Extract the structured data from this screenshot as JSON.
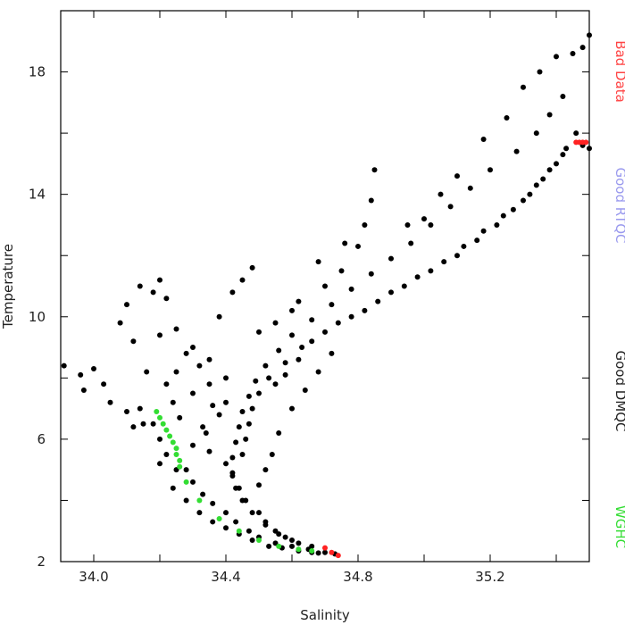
{
  "chart_data": {
    "type": "scatter",
    "title": "",
    "xlabel": "Salinity",
    "ylabel": "Temperature",
    "xlim": [
      33.9,
      35.5
    ],
    "ylim": [
      2,
      20
    ],
    "xticks": [
      34.0,
      34.2,
      34.4,
      34.6,
      34.8,
      35.0,
      35.2,
      35.4
    ],
    "xtick_labels": [
      "34.0",
      "",
      "34.4",
      "",
      "34.8",
      "",
      "35.2",
      ""
    ],
    "yticks": [
      2,
      4,
      6,
      8,
      10,
      12,
      14,
      16,
      18,
      20
    ],
    "ytick_labels": [
      "2",
      "",
      "6",
      "",
      "10",
      "",
      "14",
      "",
      "18",
      ""
    ],
    "grid": false,
    "legend_placement": "right-vertical",
    "legend": [
      {
        "name": "Bad Data",
        "color": "#ff4444"
      },
      {
        "name": "Good RTQC",
        "color": "#9999ee"
      },
      {
        "name": "Good DMQC",
        "color": "#222222"
      },
      {
        "name": "WGHC",
        "color": "#33dd33"
      }
    ],
    "series": [
      {
        "name": "Good DMQC",
        "color": "#000000",
        "points": [
          [
            33.91,
            8.4
          ],
          [
            33.96,
            8.1
          ],
          [
            33.97,
            7.6
          ],
          [
            34.0,
            8.3
          ],
          [
            34.03,
            7.8
          ],
          [
            34.05,
            7.2
          ],
          [
            34.1,
            6.9
          ],
          [
            34.15,
            6.5
          ],
          [
            34.14,
            11.0
          ],
          [
            34.18,
            10.8
          ],
          [
            34.2,
            11.2
          ],
          [
            34.22,
            10.6
          ],
          [
            34.25,
            9.6
          ],
          [
            34.3,
            9.0
          ],
          [
            34.35,
            8.6
          ],
          [
            34.4,
            8.0
          ],
          [
            34.08,
            9.8
          ],
          [
            34.12,
            9.2
          ],
          [
            34.1,
            10.4
          ],
          [
            34.2,
            9.4
          ],
          [
            34.25,
            8.2
          ],
          [
            34.3,
            7.5
          ],
          [
            34.35,
            7.8
          ],
          [
            34.4,
            7.2
          ],
          [
            34.18,
            6.5
          ],
          [
            34.2,
            6.0
          ],
          [
            34.22,
            5.5
          ],
          [
            34.25,
            5.0
          ],
          [
            34.3,
            4.6
          ],
          [
            34.33,
            4.2
          ],
          [
            34.36,
            3.9
          ],
          [
            34.4,
            3.6
          ],
          [
            34.43,
            3.3
          ],
          [
            34.47,
            3.0
          ],
          [
            34.5,
            2.8
          ],
          [
            34.55,
            2.6
          ],
          [
            34.6,
            2.5
          ],
          [
            34.65,
            2.4
          ],
          [
            34.7,
            2.3
          ],
          [
            34.73,
            2.25
          ],
          [
            34.45,
            5.5
          ],
          [
            34.46,
            6.0
          ],
          [
            34.47,
            6.5
          ],
          [
            34.48,
            7.0
          ],
          [
            34.5,
            7.5
          ],
          [
            34.53,
            8.0
          ],
          [
            34.58,
            8.5
          ],
          [
            34.63,
            9.0
          ],
          [
            34.7,
            9.5
          ],
          [
            34.78,
            10.0
          ],
          [
            34.86,
            10.5
          ],
          [
            34.94,
            11.0
          ],
          [
            35.02,
            11.5
          ],
          [
            35.1,
            12.0
          ],
          [
            35.16,
            12.5
          ],
          [
            35.22,
            13.0
          ],
          [
            35.27,
            13.5
          ],
          [
            35.32,
            14.0
          ],
          [
            35.36,
            14.5
          ],
          [
            35.4,
            15.0
          ],
          [
            35.43,
            15.5
          ],
          [
            35.46,
            16.0
          ],
          [
            35.5,
            15.5
          ],
          [
            35.48,
            15.6
          ],
          [
            34.28,
            5.0
          ],
          [
            34.3,
            5.8
          ],
          [
            34.34,
            6.2
          ],
          [
            34.38,
            6.8
          ],
          [
            34.4,
            5.2
          ],
          [
            34.42,
            4.8
          ],
          [
            34.44,
            4.4
          ],
          [
            34.46,
            4.0
          ],
          [
            34.5,
            3.6
          ],
          [
            34.52,
            3.3
          ],
          [
            34.55,
            3.0
          ],
          [
            34.58,
            2.8
          ],
          [
            34.62,
            2.6
          ],
          [
            34.66,
            2.5
          ],
          [
            34.5,
            4.5
          ],
          [
            34.52,
            5.0
          ],
          [
            34.54,
            5.5
          ],
          [
            34.56,
            6.2
          ],
          [
            34.6,
            7.0
          ],
          [
            34.64,
            7.6
          ],
          [
            34.68,
            8.2
          ],
          [
            34.72,
            8.8
          ],
          [
            34.62,
            10.5
          ],
          [
            34.7,
            11.0
          ],
          [
            34.75,
            11.5
          ],
          [
            34.8,
            12.3
          ],
          [
            34.82,
            13.0
          ],
          [
            34.84,
            13.8
          ],
          [
            34.85,
            14.8
          ],
          [
            34.76,
            12.4
          ],
          [
            34.68,
            11.8
          ],
          [
            34.6,
            10.2
          ],
          [
            34.55,
            9.8
          ],
          [
            34.5,
            9.5
          ],
          [
            34.45,
            11.2
          ],
          [
            34.48,
            11.6
          ],
          [
            34.42,
            10.8
          ],
          [
            34.38,
            10.0
          ],
          [
            34.95,
            13.0
          ],
          [
            35.0,
            13.2
          ],
          [
            35.05,
            14.0
          ],
          [
            35.1,
            14.6
          ],
          [
            35.18,
            15.8
          ],
          [
            35.25,
            16.5
          ],
          [
            35.3,
            17.5
          ],
          [
            35.35,
            18.0
          ],
          [
            35.4,
            18.5
          ],
          [
            35.45,
            18.6
          ],
          [
            35.48,
            18.8
          ],
          [
            35.5,
            19.2
          ],
          [
            35.42,
            17.2
          ],
          [
            35.38,
            16.6
          ],
          [
            35.34,
            16.0
          ],
          [
            35.28,
            15.4
          ],
          [
            35.2,
            14.8
          ],
          [
            35.14,
            14.2
          ],
          [
            35.08,
            13.6
          ],
          [
            35.02,
            13.0
          ],
          [
            34.96,
            12.4
          ],
          [
            34.9,
            11.9
          ],
          [
            34.84,
            11.4
          ],
          [
            34.78,
            10.9
          ],
          [
            34.72,
            10.4
          ],
          [
            34.66,
            9.9
          ],
          [
            34.6,
            9.4
          ],
          [
            34.56,
            8.9
          ],
          [
            34.52,
            8.4
          ],
          [
            34.49,
            7.9
          ],
          [
            34.47,
            7.4
          ],
          [
            34.45,
            6.9
          ],
          [
            34.44,
            6.4
          ],
          [
            34.43,
            5.9
          ],
          [
            34.42,
            5.4
          ],
          [
            34.42,
            4.9
          ],
          [
            34.43,
            4.4
          ],
          [
            34.45,
            4.0
          ],
          [
            34.48,
            3.6
          ],
          [
            34.52,
            3.2
          ],
          [
            34.56,
            2.9
          ],
          [
            34.6,
            2.7
          ],
          [
            34.35,
            5.6
          ],
          [
            34.33,
            6.4
          ],
          [
            34.36,
            7.1
          ],
          [
            34.32,
            8.4
          ],
          [
            34.28,
            8.8
          ],
          [
            34.24,
            7.2
          ],
          [
            34.26,
            6.7
          ],
          [
            34.22,
            7.8
          ],
          [
            34.16,
            8.2
          ],
          [
            34.14,
            7.0
          ],
          [
            34.12,
            6.4
          ],
          [
            34.2,
            5.2
          ],
          [
            34.24,
            4.4
          ],
          [
            34.28,
            4.0
          ],
          [
            34.32,
            3.6
          ],
          [
            34.36,
            3.3
          ],
          [
            34.4,
            3.1
          ],
          [
            34.44,
            2.9
          ],
          [
            34.48,
            2.7
          ],
          [
            34.53,
            2.5
          ],
          [
            34.57,
            2.45
          ],
          [
            34.62,
            2.35
          ],
          [
            34.66,
            2.3
          ],
          [
            34.68,
            2.28
          ],
          [
            34.55,
            7.8
          ],
          [
            34.58,
            8.1
          ],
          [
            34.62,
            8.6
          ],
          [
            34.66,
            9.2
          ],
          [
            34.74,
            9.8
          ],
          [
            34.82,
            10.2
          ],
          [
            34.9,
            10.8
          ],
          [
            34.98,
            11.3
          ],
          [
            35.06,
            11.8
          ],
          [
            35.12,
            12.3
          ],
          [
            35.18,
            12.8
          ],
          [
            35.24,
            13.3
          ],
          [
            35.3,
            13.8
          ],
          [
            35.34,
            14.3
          ],
          [
            35.38,
            14.8
          ],
          [
            35.42,
            15.3
          ]
        ]
      },
      {
        "name": "WGHC",
        "color": "#33dd33",
        "points": [
          [
            34.19,
            6.9
          ],
          [
            34.2,
            6.7
          ],
          [
            34.21,
            6.5
          ],
          [
            34.22,
            6.3
          ],
          [
            34.23,
            6.1
          ],
          [
            34.24,
            5.9
          ],
          [
            34.25,
            5.7
          ],
          [
            34.25,
            5.5
          ],
          [
            34.26,
            5.3
          ],
          [
            34.26,
            5.1
          ],
          [
            34.28,
            4.6
          ],
          [
            34.32,
            4.0
          ],
          [
            34.38,
            3.4
          ],
          [
            34.44,
            3.0
          ],
          [
            34.5,
            2.7
          ],
          [
            34.56,
            2.5
          ],
          [
            34.62,
            2.4
          ],
          [
            34.66,
            2.35
          ]
        ]
      },
      {
        "name": "Bad Data",
        "color": "#ff2222",
        "points": [
          [
            35.46,
            15.7
          ],
          [
            35.47,
            15.7
          ],
          [
            35.48,
            15.7
          ],
          [
            35.49,
            15.7
          ],
          [
            34.7,
            2.45
          ],
          [
            34.72,
            2.3
          ],
          [
            34.74,
            2.2
          ]
        ]
      }
    ]
  }
}
